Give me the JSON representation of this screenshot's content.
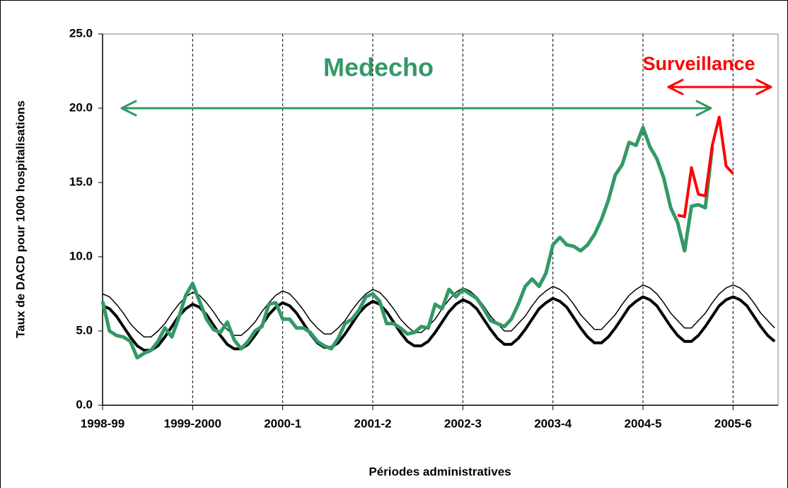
{
  "chart_data": {
    "type": "line",
    "ylabel": "Taux de DACD pour 1000 hospitalisations",
    "xlabel": "Périodes administratives",
    "annotations": [
      {
        "text": "Medecho",
        "color": "#339966"
      },
      {
        "text": "Surveillance",
        "color": "#ff0000"
      }
    ],
    "xlim": [
      0,
      97.5
    ],
    "xticks": [
      {
        "value": 0,
        "label": "1998-99"
      },
      {
        "value": 13,
        "label": "1999-2000"
      },
      {
        "value": 26,
        "label": "2000-1"
      },
      {
        "value": 39,
        "label": "2001-2"
      },
      {
        "value": 52,
        "label": "2002-3"
      },
      {
        "value": 65,
        "label": "2003-4"
      },
      {
        "value": 78,
        "label": "2004-5"
      },
      {
        "value": 91,
        "label": "2005-6"
      }
    ],
    "ylim": [
      0,
      25
    ],
    "yticks": [
      {
        "value": 0,
        "label": "0.0"
      },
      {
        "value": 5,
        "label": "5.0"
      },
      {
        "value": 10,
        "label": "10.0"
      },
      {
        "value": 15,
        "label": "15.0"
      },
      {
        "value": 20,
        "label": "20.0"
      },
      {
        "value": 25,
        "label": "25.0"
      }
    ],
    "grid": "x-dashed",
    "series": [
      {
        "color": "#000000",
        "linewidth": 1.5,
        "x": [
          0,
          1,
          2,
          3,
          4,
          5,
          6,
          7,
          8,
          9,
          10,
          11,
          12,
          13,
          14,
          15,
          16,
          17,
          18,
          19,
          20,
          21,
          22,
          23,
          24,
          25,
          26,
          27,
          28,
          29,
          30,
          31,
          32,
          33,
          34,
          35,
          36,
          37,
          38,
          39,
          40,
          41,
          42,
          43,
          44,
          45,
          46,
          47,
          48,
          49,
          50,
          51,
          52,
          53,
          54,
          55,
          56,
          57,
          58,
          59,
          60,
          61,
          62,
          63,
          64,
          65,
          66,
          67,
          68,
          69,
          70,
          71,
          72,
          73,
          74,
          75,
          76,
          77,
          78,
          79,
          80,
          81,
          82,
          83,
          84,
          85,
          86,
          87,
          88,
          89,
          90,
          91,
          92,
          93,
          94,
          95,
          96,
          97
        ],
        "values": [
          7.5,
          7.3,
          6.8,
          6.2,
          5.5,
          5.0,
          4.6,
          4.6,
          5.0,
          5.5,
          6.2,
          6.8,
          7.3,
          7.6,
          7.4,
          6.9,
          6.3,
          5.6,
          5.1,
          4.7,
          4.7,
          5.1,
          5.6,
          6.3,
          6.9,
          7.4,
          7.7,
          7.5,
          7.0,
          6.4,
          5.7,
          5.2,
          4.8,
          4.8,
          5.2,
          5.7,
          6.4,
          7.0,
          7.5,
          7.8,
          7.6,
          7.1,
          6.5,
          5.8,
          5.3,
          4.9,
          4.9,
          5.3,
          5.8,
          6.5,
          7.1,
          7.6,
          7.9,
          7.7,
          7.3,
          6.7,
          6.0,
          5.5,
          5.0,
          5.0,
          5.5,
          6.0,
          6.7,
          7.3,
          7.7,
          8.0,
          7.8,
          7.4,
          6.8,
          6.1,
          5.6,
          5.1,
          5.1,
          5.6,
          6.1,
          6.8,
          7.4,
          7.8,
          8.1,
          7.9,
          7.5,
          6.9,
          6.2,
          5.7,
          5.2,
          5.2,
          5.7,
          6.2,
          6.9,
          7.5,
          7.9,
          8.1,
          7.9,
          7.5,
          6.9,
          6.2,
          5.7,
          5.2
        ]
      },
      {
        "color": "#000000",
        "linewidth": 4,
        "x": [
          0,
          1,
          2,
          3,
          4,
          5,
          6,
          7,
          8,
          9,
          10,
          11,
          12,
          13,
          14,
          15,
          16,
          17,
          18,
          19,
          20,
          21,
          22,
          23,
          24,
          25,
          26,
          27,
          28,
          29,
          30,
          31,
          32,
          33,
          34,
          35,
          36,
          37,
          38,
          39,
          40,
          41,
          42,
          43,
          44,
          45,
          46,
          47,
          48,
          49,
          50,
          51,
          52,
          53,
          54,
          55,
          56,
          57,
          58,
          59,
          60,
          61,
          62,
          63,
          64,
          65,
          66,
          67,
          68,
          69,
          70,
          71,
          72,
          73,
          74,
          75,
          76,
          77,
          78,
          79,
          80,
          81,
          82,
          83,
          84,
          85,
          86,
          87,
          88,
          89,
          90,
          91,
          92,
          93,
          94,
          95,
          96,
          97
        ],
        "values": [
          6.7,
          6.5,
          6.0,
          5.3,
          4.6,
          4.0,
          3.7,
          3.7,
          4.0,
          4.6,
          5.3,
          6.0,
          6.5,
          6.8,
          6.6,
          6.1,
          5.4,
          4.7,
          4.1,
          3.8,
          3.8,
          4.1,
          4.7,
          5.4,
          6.1,
          6.6,
          6.9,
          6.7,
          6.2,
          5.5,
          4.8,
          4.2,
          3.9,
          3.9,
          4.2,
          4.8,
          5.5,
          6.2,
          6.7,
          7.0,
          6.8,
          6.3,
          5.6,
          4.9,
          4.3,
          4.0,
          4.0,
          4.3,
          4.9,
          5.6,
          6.3,
          6.8,
          7.1,
          6.9,
          6.5,
          5.8,
          5.1,
          4.5,
          4.1,
          4.1,
          4.5,
          5.1,
          5.8,
          6.5,
          6.9,
          7.2,
          7.0,
          6.6,
          5.9,
          5.2,
          4.6,
          4.2,
          4.2,
          4.6,
          5.2,
          5.9,
          6.6,
          7.0,
          7.3,
          7.1,
          6.7,
          6.0,
          5.3,
          4.7,
          4.3,
          4.3,
          4.7,
          5.3,
          6.0,
          6.7,
          7.1,
          7.3,
          7.1,
          6.7,
          6.0,
          5.3,
          4.7,
          4.3
        ]
      },
      {
        "color": "#339966",
        "linewidth": 5,
        "x": [
          0,
          1,
          2,
          3,
          4,
          5,
          6,
          7,
          8,
          9,
          10,
          11,
          12,
          13,
          14,
          15,
          16,
          17,
          18,
          19,
          20,
          21,
          22,
          23,
          24,
          25,
          26,
          27,
          28,
          29,
          30,
          31,
          32,
          33,
          34,
          35,
          36,
          37,
          38,
          39,
          40,
          41,
          42,
          43,
          44,
          45,
          46,
          47,
          48,
          49,
          50,
          51,
          52,
          53,
          54,
          55,
          56,
          57,
          58,
          59,
          60,
          61,
          62,
          63,
          64,
          65,
          66,
          67,
          68,
          69,
          70,
          71,
          72,
          73,
          74,
          75,
          76,
          77,
          78,
          79,
          80,
          81,
          82,
          83,
          84,
          85,
          86,
          87,
          88
        ],
        "values": [
          7.0,
          5.0,
          4.7,
          4.6,
          4.3,
          3.2,
          3.5,
          3.7,
          4.3,
          5.2,
          4.6,
          5.9,
          7.4,
          8.2,
          7.0,
          5.8,
          5.1,
          4.9,
          5.6,
          4.4,
          3.8,
          4.3,
          5.0,
          5.3,
          6.8,
          6.9,
          5.8,
          5.8,
          5.2,
          5.2,
          4.9,
          4.3,
          4.0,
          3.8,
          4.5,
          5.5,
          5.8,
          6.4,
          7.3,
          7.5,
          7.0,
          5.5,
          5.5,
          5.2,
          4.8,
          4.9,
          5.3,
          5.2,
          6.8,
          6.5,
          7.8,
          7.3,
          7.8,
          7.5,
          7.2,
          6.5,
          5.7,
          5.5,
          5.3,
          5.8,
          6.8,
          8.0,
          8.5,
          8.0,
          8.9,
          10.8,
          11.3,
          10.8,
          10.7,
          10.4,
          10.8,
          11.5,
          12.5,
          13.8,
          15.5,
          16.2,
          17.7,
          17.5,
          18.7,
          17.4,
          16.6,
          15.3,
          13.3,
          12.3,
          10.4,
          13.4,
          13.5,
          13.3,
          17.4
        ]
      },
      {
        "color": "#ff0000",
        "linewidth": 4,
        "x": [
          83,
          84,
          85,
          86,
          87,
          88,
          89,
          90,
          91
        ],
        "values": [
          12.8,
          12.7,
          16.0,
          14.2,
          14.1,
          17.5,
          19.4,
          16.1,
          15.6
        ]
      }
    ]
  }
}
